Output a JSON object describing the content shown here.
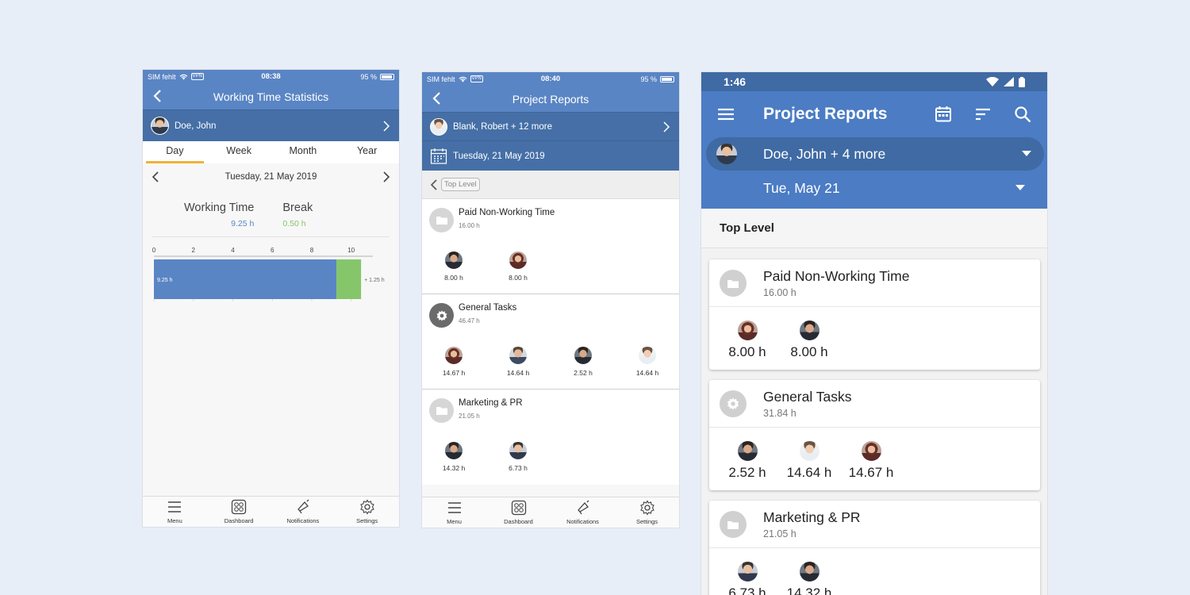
{
  "phone1": {
    "status": {
      "carrier": "SIM fehlt",
      "vpn": "VPN",
      "time": "08:38",
      "battery": "95 %"
    },
    "title": "Working Time Statistics",
    "user": "Doe, John",
    "tabs": [
      "Day",
      "Week",
      "Month",
      "Year"
    ],
    "date": "Tuesday, 21 May 2019",
    "working_label": "Working Time",
    "working_value": "9.25 h",
    "break_label": "Break",
    "break_value": "0.50 h",
    "chart_data": {
      "type": "bar",
      "orientation": "horizontal",
      "stacked": true,
      "x_ticks": [
        "0",
        "2",
        "4",
        "6",
        "8",
        "10"
      ],
      "xlim": [
        0,
        11.5
      ],
      "series": [
        {
          "value": 9.25,
          "label": "9.25 h",
          "color": "#5a85c4"
        },
        {
          "value": 1.25,
          "label": "+ 1.25 h",
          "color": "#86c66a"
        }
      ]
    },
    "tabbar": [
      "Menu",
      "Dashboard",
      "Notifications",
      "Settings"
    ]
  },
  "phone2": {
    "status": {
      "carrier": "SIM fehlt",
      "vpn": "VPN",
      "time": "08:40",
      "battery": "95 %"
    },
    "title": "Project Reports",
    "users": "Blank, Robert + 12 more",
    "date": "Tuesday, 21 May 2019",
    "level": "Top Level",
    "projects": [
      {
        "name": "Paid Non-Working Time",
        "hours": "16.00 h",
        "people": [
          "8.00 h",
          "8.00 h"
        ]
      },
      {
        "name": "General Tasks",
        "hours": "46.47 h",
        "people": [
          "14.67 h",
          "14.64 h",
          "2.52 h",
          "14.64 h"
        ]
      },
      {
        "name": "Marketing & PR",
        "hours": "21.05 h",
        "people": [
          "14.32 h",
          "6.73 h"
        ]
      }
    ],
    "tabbar": [
      "Menu",
      "Dashboard",
      "Notifications",
      "Settings"
    ]
  },
  "phone3": {
    "status_time": "1:46",
    "title": "Project Reports",
    "users": "Doe, John + 4 more",
    "date": "Tue, May 21",
    "level": "Top Level",
    "projects": [
      {
        "name": "Paid Non-Working Time",
        "hours": "16.00 h",
        "people": [
          "8.00 h",
          "8.00 h"
        ]
      },
      {
        "name": "General Tasks",
        "hours": "31.84 h",
        "people": [
          "2.52 h",
          "14.64 h",
          "14.67 h"
        ]
      },
      {
        "name": "Marketing & PR",
        "hours": "21.05 h",
        "people": [
          "6.73 h",
          "14.32 h"
        ]
      }
    ]
  },
  "colors": {
    "primary": "#5a85c4",
    "primary_dark": "#456fa6",
    "break_green": "#86c66a",
    "tab_accent": "#f0b13a"
  }
}
